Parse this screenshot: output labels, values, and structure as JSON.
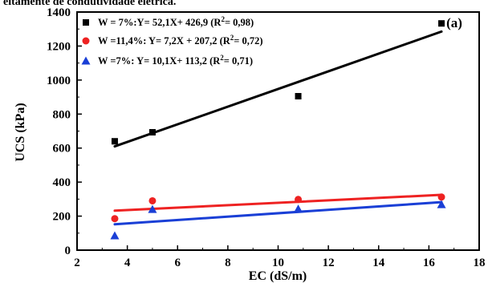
{
  "caption": "eitamente de condutividade elétrica.",
  "chart_data": {
    "type": "scatter",
    "panel_label": "(a)",
    "xlabel": "EC (dS/m)",
    "ylabel": "UCS (kPa)",
    "xlim": [
      2,
      18
    ],
    "ylim": [
      0,
      1400
    ],
    "x_ticks": [
      2,
      4,
      6,
      8,
      10,
      12,
      14,
      16,
      18
    ],
    "y_ticks": [
      0,
      200,
      400,
      600,
      800,
      1000,
      1200,
      1400
    ],
    "grid": false,
    "legend_position": "top-left",
    "series": [
      {
        "legend_text": "W = 7%:Y= 52,1X+ 426,9 (R",
        "legend_r2": "= 0,98)",
        "marker": "square",
        "color": "#000000",
        "points": [
          {
            "x": 3.5,
            "y": 640
          },
          {
            "x": 5.0,
            "y": 693
          },
          {
            "x": 10.8,
            "y": 905
          },
          {
            "x": 16.5,
            "y": 1333
          }
        ],
        "fit_line": {
          "x": [
            3.5,
            16.5
          ],
          "y": [
            610,
            1285
          ]
        }
      },
      {
        "legend_text": "W =11,4%: Y= 7,2X + 207,2 (R",
        "legend_r2": "= 0,72)",
        "marker": "circle",
        "color": "#ee2222",
        "points": [
          {
            "x": 3.5,
            "y": 185
          },
          {
            "x": 5.0,
            "y": 290
          },
          {
            "x": 10.8,
            "y": 298
          },
          {
            "x": 16.5,
            "y": 312
          }
        ],
        "fit_line": {
          "x": [
            3.5,
            16.5
          ],
          "y": [
            232,
            325
          ]
        }
      },
      {
        "legend_text": "W =7%: Y= 10,1X+ 113,2 (R",
        "legend_r2": "= 0,71)",
        "marker": "triangle",
        "color": "#1a3fd6",
        "points": [
          {
            "x": 3.5,
            "y": 85
          },
          {
            "x": 5.0,
            "y": 240
          },
          {
            "x": 10.8,
            "y": 242
          },
          {
            "x": 16.5,
            "y": 268
          }
        ],
        "fit_line": {
          "x": [
            3.5,
            16.5
          ],
          "y": [
            152,
            282
          ]
        }
      }
    ]
  }
}
